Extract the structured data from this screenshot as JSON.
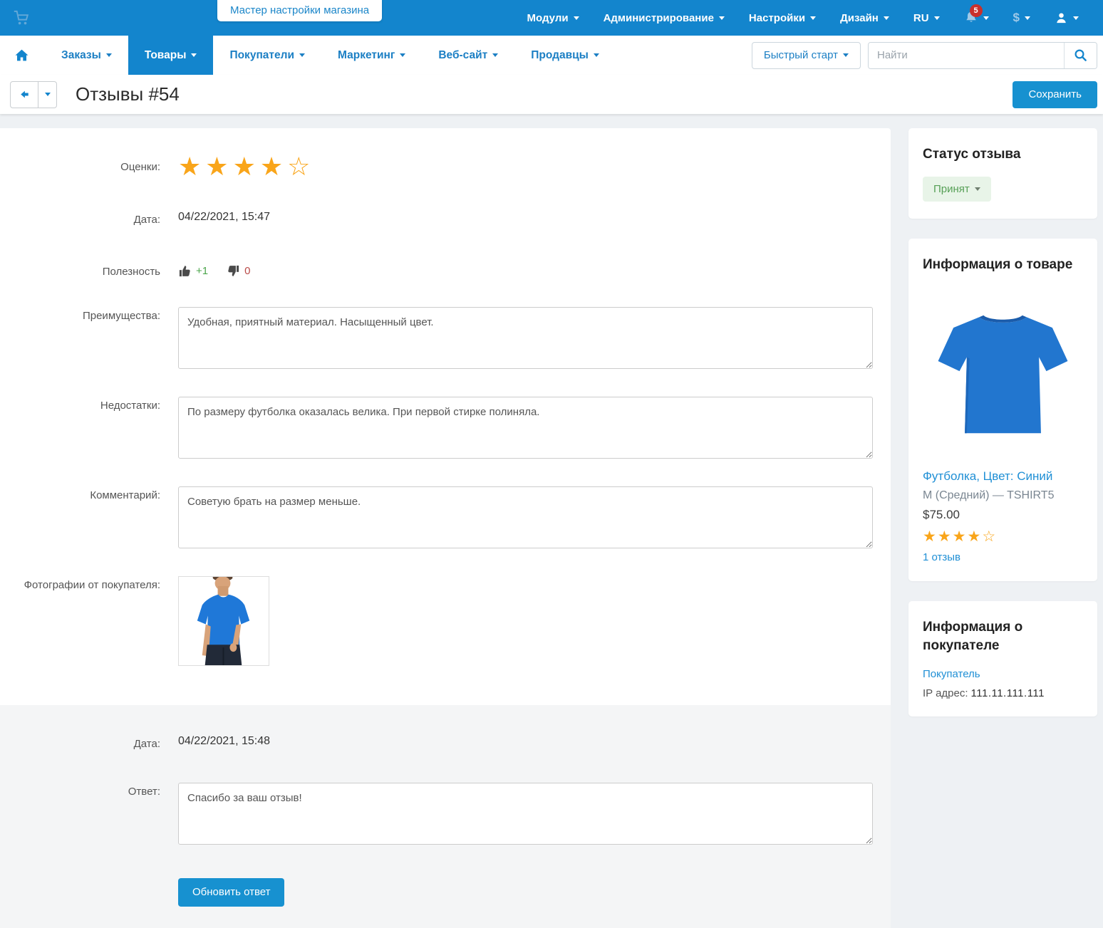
{
  "topbar": {
    "wizard_tab": "Мастер настройки магазина",
    "menu": [
      {
        "label": "Модули"
      },
      {
        "label": "Администрирование"
      },
      {
        "label": "Настройки"
      },
      {
        "label": "Дизайн"
      },
      {
        "label": "RU"
      }
    ],
    "notifications_badge": "5",
    "currency_symbol": "$"
  },
  "navbar": {
    "items": [
      {
        "label": "Заказы"
      },
      {
        "label": "Товары"
      },
      {
        "label": "Покупатели"
      },
      {
        "label": "Маркетинг"
      },
      {
        "label": "Веб-сайт"
      },
      {
        "label": "Продавцы"
      }
    ],
    "active_item": "Товары",
    "quick_start": "Быстрый старт",
    "search_placeholder": "Найти"
  },
  "header": {
    "title": "Отзывы #54",
    "save_button": "Сохранить"
  },
  "review": {
    "rating_label": "Оценки:",
    "rating": 4,
    "rating_max": 5,
    "date_label": "Дата:",
    "date_value": "04/22/2021, 15:47",
    "usefulness_label": "Полезность",
    "thumbs_up_value": "+1",
    "thumbs_down_value": "0",
    "advantages_label": "Преимущества:",
    "advantages_value": "Удобная, приятный материал. Насыщенный цвет.",
    "disadvantages_label": "Недостатки:",
    "disadvantages_value": "По размеру футболка оказалась велика. При первой стирке полиняла.",
    "comment_label": "Комментарий:",
    "comment_value": "Советую брать на размер меньше.",
    "photos_label": "Фотографии от покупателя:"
  },
  "reply": {
    "date_label": "Дата:",
    "date_value": "04/22/2021, 15:48",
    "answer_label": "Ответ:",
    "answer_value": "Спасибо за ваш отзыв!",
    "update_button": "Обновить ответ"
  },
  "sidebar": {
    "status_card": {
      "title": "Статус отзыва",
      "status_value": "Принят"
    },
    "product_card": {
      "title": "Информация о товаре",
      "product_name": "Футболка, Цвет: Синий",
      "variant": "M (Средний) — TSHIRT5",
      "price": "$75.00",
      "rating": 4,
      "reviews_link": "1 отзыв"
    },
    "customer_card": {
      "title": "Информация о покупателе",
      "customer_link": "Покупатель",
      "ip_label": "IP адрес:",
      "ip_value": "111.11.111.111"
    }
  },
  "colors": {
    "topbar_blue": "#1385cd",
    "button_blue": "#1791d0",
    "link_blue": "#1f8fd5",
    "star_orange": "#f9a51a",
    "notification_red": "#c9302c",
    "status_green_bg": "#e8f4e8",
    "status_green_text": "#57a057",
    "thumb_up_green": "#4ca64c",
    "thumb_down_red": "#b94a48"
  }
}
